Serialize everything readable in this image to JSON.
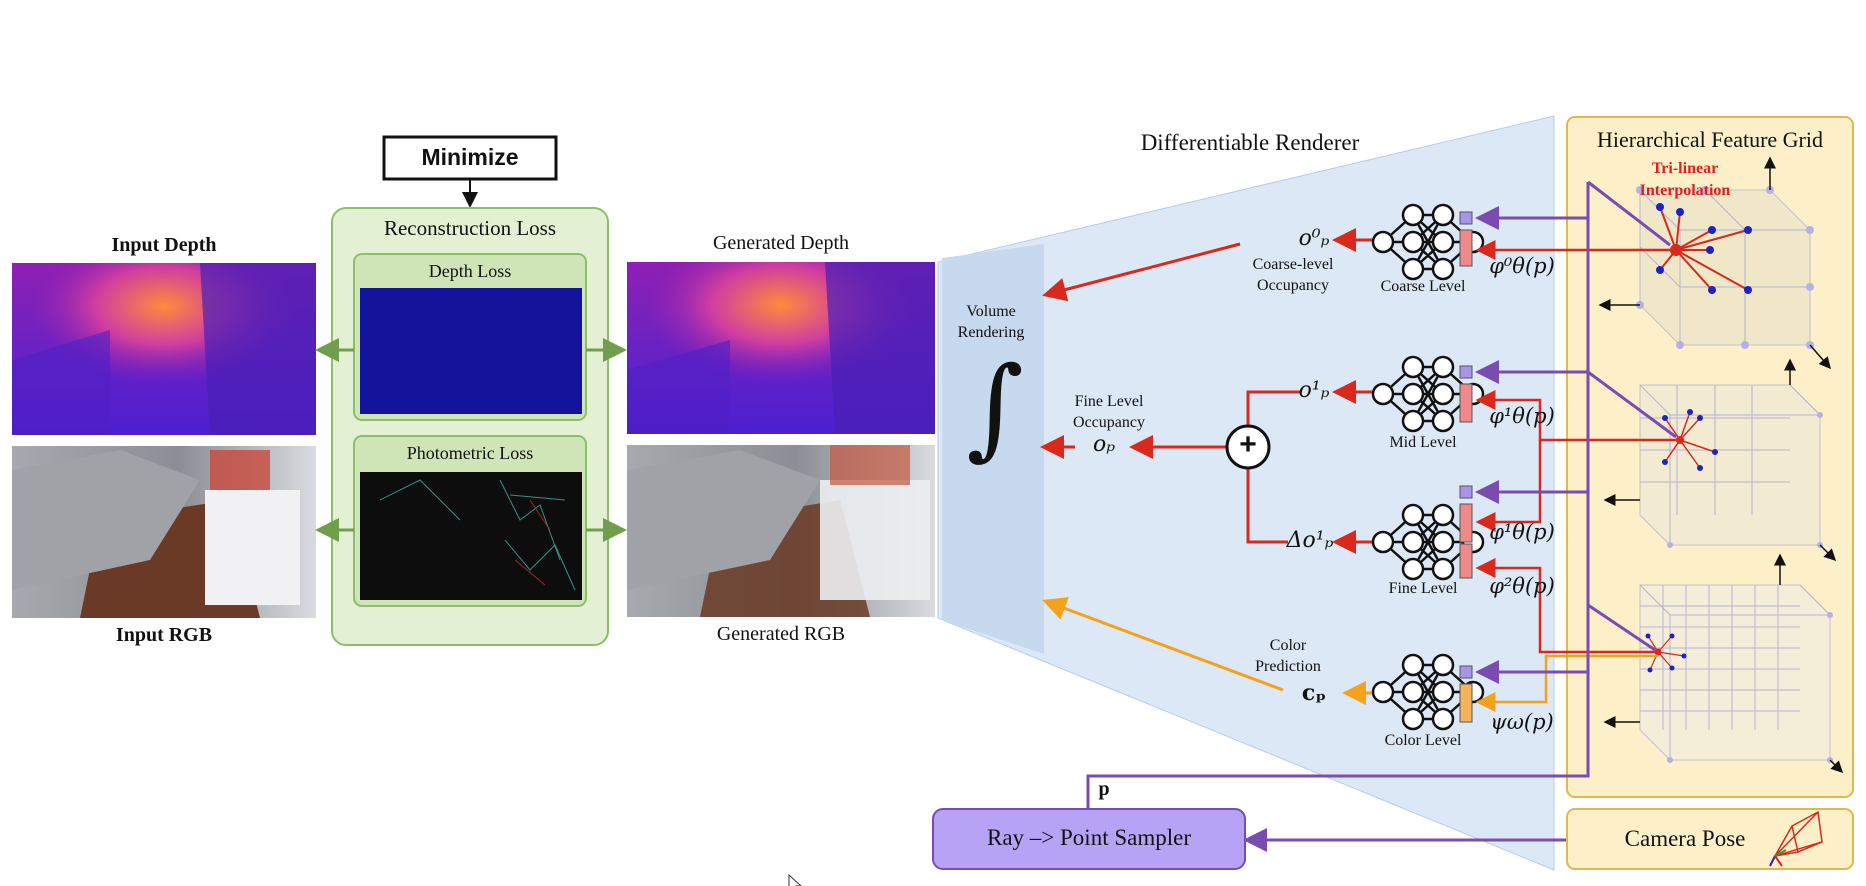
{
  "minimize": "Minimize",
  "loss": {
    "title": "Reconstruction Loss",
    "depth_loss": "Depth Loss",
    "photometric_loss": "Photometric Loss"
  },
  "inputs": {
    "depth": "Input Depth",
    "rgb": "Input RGB"
  },
  "generated": {
    "depth": "Generated Depth",
    "rgb": "Generated RGB"
  },
  "renderer": {
    "title": "Differentiable Renderer",
    "volume_rendering": "Volume\nRendering",
    "integral": "∫",
    "plus": "+",
    "coarse_occ_label": "Coarse-level\nOccupancy",
    "fine_occ_label": "Fine Level\nOccupancy",
    "color_pred_label": "Color\nPrediction",
    "o_p0": "o⁰ₚ",
    "o_p1": "o¹ₚ",
    "o_p": "oₚ",
    "delta_o_p1": "Δo¹ₚ",
    "c_p": "cₚ",
    "levels": {
      "coarse": "Coarse Level",
      "mid": "Mid Level",
      "fine": "Fine Level",
      "color": "Color Level"
    },
    "features": {
      "phi0": "φ⁰θ(p)",
      "phi1_mid": "φ¹θ(p)",
      "phi1_fine": "φ¹θ(p)",
      "phi2_fine": "φ²θ(p)",
      "psi": "ψω(p)"
    }
  },
  "grid": {
    "title": "Hierarchical Feature Grid",
    "interp_label": "Tri-linear\nInterpolation"
  },
  "sampler": {
    "label": "Ray –> Point Sampler",
    "p": "p"
  },
  "camera": {
    "label": "Camera Pose"
  },
  "colors": {
    "loss_fill": "#e3f0d3",
    "loss_border": "#8cbf6a",
    "renderer_fill": "#dce8f6",
    "grid_fill": "#fdf0c8",
    "grid_border": "#e0b94e",
    "sampler_fill": "#b7a3f5",
    "arrow_red": "#d8291c",
    "arrow_orange": "#f4a11c",
    "arrow_purple": "#7a4bb0",
    "arrow_green": "#6f9e4d",
    "interp_text": "#e02020"
  }
}
